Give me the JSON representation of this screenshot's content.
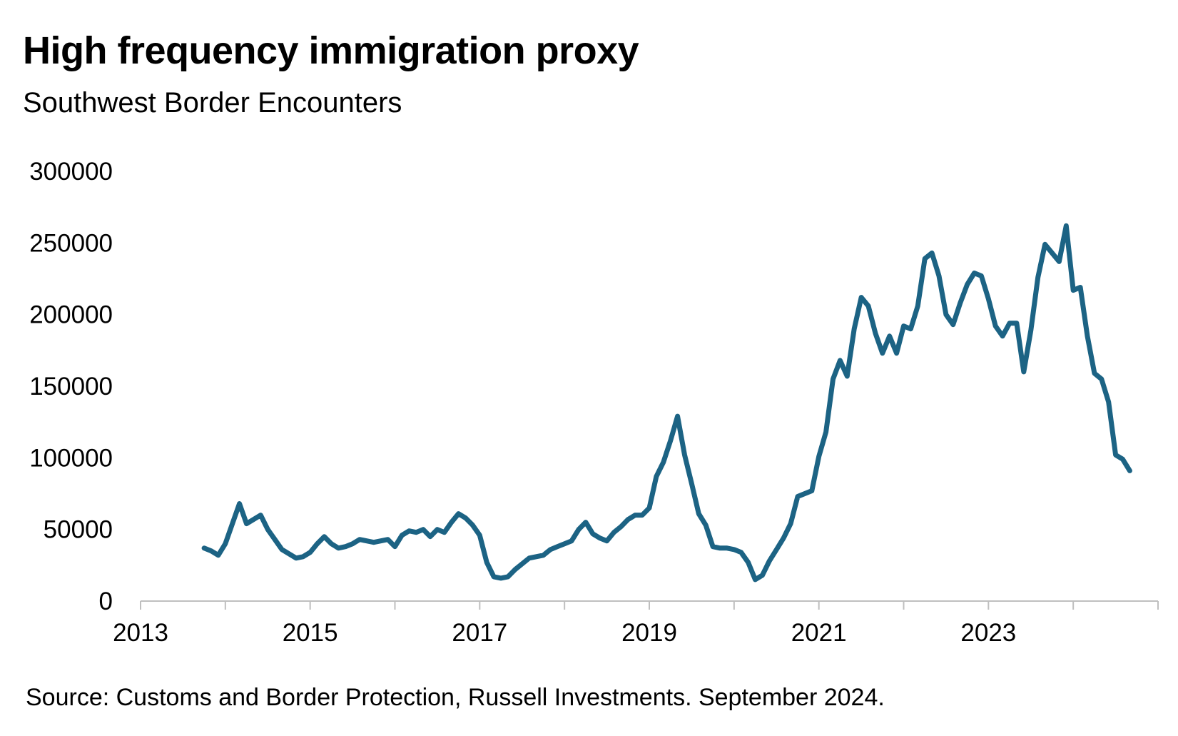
{
  "chart_data": {
    "type": "line",
    "title": "High frequency immigration proxy",
    "subtitle": "Southwest Border Encounters",
    "source": "Source: Customs and Border Protection, Russell Investments. September 2024.",
    "xlabel": "",
    "ylabel": "",
    "xlim": [
      2013,
      2025
    ],
    "ylim": [
      0,
      300000
    ],
    "x_ticks": [
      "2013",
      "2015",
      "2017",
      "2019",
      "2021",
      "2023"
    ],
    "y_ticks": [
      "0",
      "50000",
      "100000",
      "150000",
      "200000",
      "250000",
      "300000"
    ],
    "grid": false,
    "line_color": "#1c6384",
    "series": [
      {
        "values": [
          [
            "2013-10",
            37000
          ],
          [
            "2013-11",
            35000
          ],
          [
            "2013-12",
            32000
          ],
          [
            "2014-01",
            40000
          ],
          [
            "2014-02",
            54000
          ],
          [
            "2014-03",
            68000
          ],
          [
            "2014-04",
            54000
          ],
          [
            "2014-05",
            57000
          ],
          [
            "2014-06",
            60000
          ],
          [
            "2014-07",
            50000
          ],
          [
            "2014-08",
            43000
          ],
          [
            "2014-09",
            36000
          ],
          [
            "2014-10",
            33000
          ],
          [
            "2014-11",
            30000
          ],
          [
            "2014-12",
            31000
          ],
          [
            "2015-01",
            34000
          ],
          [
            "2015-02",
            40000
          ],
          [
            "2015-03",
            45000
          ],
          [
            "2015-04",
            40000
          ],
          [
            "2015-05",
            37000
          ],
          [
            "2015-06",
            38000
          ],
          [
            "2015-07",
            40000
          ],
          [
            "2015-08",
            43000
          ],
          [
            "2015-09",
            42000
          ],
          [
            "2015-10",
            41000
          ],
          [
            "2015-11",
            42000
          ],
          [
            "2015-12",
            43000
          ],
          [
            "2016-01",
            38000
          ],
          [
            "2016-02",
            46000
          ],
          [
            "2016-03",
            49000
          ],
          [
            "2016-04",
            48000
          ],
          [
            "2016-05",
            50000
          ],
          [
            "2016-06",
            45000
          ],
          [
            "2016-07",
            50000
          ],
          [
            "2016-08",
            48000
          ],
          [
            "2016-09",
            55000
          ],
          [
            "2016-10",
            61000
          ],
          [
            "2016-11",
            58000
          ],
          [
            "2016-12",
            53000
          ],
          [
            "2017-01",
            46000
          ],
          [
            "2017-02",
            27000
          ],
          [
            "2017-03",
            17000
          ],
          [
            "2017-04",
            16000
          ],
          [
            "2017-05",
            17000
          ],
          [
            "2017-06",
            22000
          ],
          [
            "2017-07",
            26000
          ],
          [
            "2017-08",
            30000
          ],
          [
            "2017-09",
            31000
          ],
          [
            "2017-10",
            32000
          ],
          [
            "2017-11",
            36000
          ],
          [
            "2017-12",
            38000
          ],
          [
            "2018-01",
            40000
          ],
          [
            "2018-02",
            42000
          ],
          [
            "2018-03",
            50000
          ],
          [
            "2018-04",
            55000
          ],
          [
            "2018-05",
            47000
          ],
          [
            "2018-06",
            44000
          ],
          [
            "2018-07",
            42000
          ],
          [
            "2018-08",
            48000
          ],
          [
            "2018-09",
            52000
          ],
          [
            "2018-10",
            57000
          ],
          [
            "2018-11",
            60000
          ],
          [
            "2018-12",
            60000
          ],
          [
            "2019-01",
            65000
          ],
          [
            "2019-02",
            87000
          ],
          [
            "2019-03",
            97000
          ],
          [
            "2019-04",
            112000
          ],
          [
            "2019-05",
            129000
          ],
          [
            "2019-06",
            102000
          ],
          [
            "2019-07",
            82000
          ],
          [
            "2019-08",
            61000
          ],
          [
            "2019-09",
            53000
          ],
          [
            "2019-10",
            38000
          ],
          [
            "2019-11",
            37000
          ],
          [
            "2019-12",
            37000
          ],
          [
            "2020-01",
            36000
          ],
          [
            "2020-02",
            34000
          ],
          [
            "2020-03",
            27000
          ],
          [
            "2020-04",
            15000
          ],
          [
            "2020-05",
            18000
          ],
          [
            "2020-06",
            28000
          ],
          [
            "2020-07",
            36000
          ],
          [
            "2020-08",
            44000
          ],
          [
            "2020-09",
            54000
          ],
          [
            "2020-10",
            73000
          ],
          [
            "2020-11",
            75000
          ],
          [
            "2020-12",
            77000
          ],
          [
            "2021-01",
            101000
          ],
          [
            "2021-02",
            118000
          ],
          [
            "2021-03",
            155000
          ],
          [
            "2021-04",
            168000
          ],
          [
            "2021-05",
            157000
          ],
          [
            "2021-06",
            190000
          ],
          [
            "2021-07",
            212000
          ],
          [
            "2021-08",
            206000
          ],
          [
            "2021-09",
            187000
          ],
          [
            "2021-10",
            173000
          ],
          [
            "2021-11",
            185000
          ],
          [
            "2021-12",
            173000
          ],
          [
            "2022-01",
            192000
          ],
          [
            "2022-02",
            190000
          ],
          [
            "2022-03",
            206000
          ],
          [
            "2022-04",
            239000
          ],
          [
            "2022-05",
            243000
          ],
          [
            "2022-06",
            227000
          ],
          [
            "2022-07",
            200000
          ],
          [
            "2022-08",
            193000
          ],
          [
            "2022-09",
            208000
          ],
          [
            "2022-10",
            221000
          ],
          [
            "2022-11",
            229000
          ],
          [
            "2022-12",
            227000
          ],
          [
            "2023-01",
            211000
          ],
          [
            "2023-02",
            192000
          ],
          [
            "2023-03",
            185000
          ],
          [
            "2023-04",
            194000
          ],
          [
            "2023-05",
            194000
          ],
          [
            "2023-06",
            160000
          ],
          [
            "2023-07",
            189000
          ],
          [
            "2023-08",
            226000
          ],
          [
            "2023-09",
            249000
          ],
          [
            "2023-10",
            243000
          ],
          [
            "2023-11",
            237000
          ],
          [
            "2023-12",
            262000
          ],
          [
            "2024-01",
            217000
          ],
          [
            "2024-02",
            219000
          ],
          [
            "2024-03",
            185000
          ],
          [
            "2024-04",
            159000
          ],
          [
            "2024-05",
            155000
          ],
          [
            "2024-06",
            139000
          ],
          [
            "2024-07",
            102000
          ],
          [
            "2024-08",
            99000
          ],
          [
            "2024-09",
            91000
          ]
        ]
      }
    ]
  }
}
